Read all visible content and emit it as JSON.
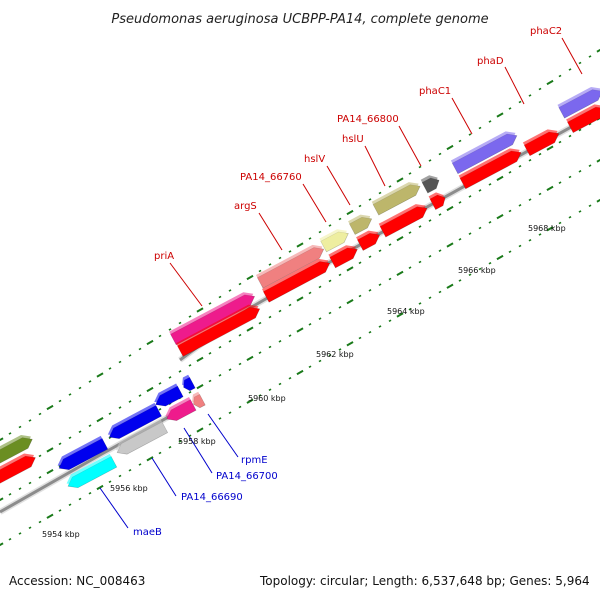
{
  "title": "Pseudomonas aeruginosa UCBPP-PA14, complete genome",
  "footer": {
    "accession": "Accession: NC_008463",
    "topology": "Topology: circular; Length: 6,537,648 bp; Genes: 5,964"
  },
  "colors": {
    "cds_red": "#ff0000",
    "backbone": "#8c8c8c",
    "tick_green": "#1a7a1a",
    "label_top": "#cc0000",
    "label_bottom": "#0000cc",
    "magenta": "#ee1c8c",
    "salmon": "#f08080",
    "khaki": "#bdb76b",
    "pale_yellow": "#eeeea0",
    "slate": "#7b68ee",
    "dark_gray": "#555555",
    "olive": "#6b8e23",
    "blue": "#0000ee",
    "light_gray": "#c8c8c8",
    "cyan": "#00ffff"
  },
  "kbp_ticks": [
    "5954 kbp",
    "5956 kbp",
    "5958 kbp",
    "5960 kbp",
    "5962 kbp",
    "5964 kbp",
    "5966 kbp",
    "5968 kbp"
  ],
  "genes_top": [
    "priA",
    "argS",
    "PA14_66760",
    "hslV",
    "hslU",
    "PA14_66800",
    "phaC1",
    "phaD",
    "phaC2"
  ],
  "genes_bottom": [
    "maeB",
    "PA14_66690",
    "PA14_66700",
    "rpmE"
  ]
}
